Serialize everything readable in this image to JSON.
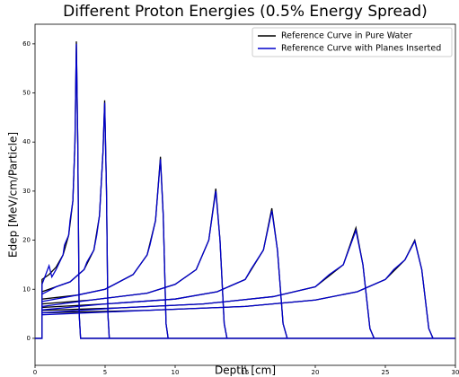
{
  "chart_data": {
    "type": "line",
    "title": "Different Proton Energies (0.5% Energy Spread)",
    "x_label": "Depth [cm]",
    "y_label": "Edep [MeV/cm/Particle]",
    "xlim": [
      0,
      30
    ],
    "xticks": [
      0,
      5,
      10,
      15,
      20,
      25,
      30
    ],
    "ylim": [
      -5.5,
      64
    ],
    "yticks": [
      0,
      10,
      20,
      30,
      40,
      50,
      60
    ],
    "legend": "upper right",
    "series": [
      {
        "name": "Reference Curve in Pure Water",
        "color": "#000000",
        "x": [
          0,
          0.5,
          0.5,
          1,
          1.5,
          2,
          2.4,
          2.7,
          2.85,
          2.95,
          3.05,
          3.15,
          3.25,
          30,
          null,
          0,
          0.5,
          0.5,
          1.5,
          2.5,
          3.5,
          4.2,
          4.6,
          4.85,
          4.97,
          5.1,
          5.2,
          5.3,
          30,
          null,
          0,
          0.5,
          0.5,
          3,
          5,
          7,
          8,
          8.6,
          8.95,
          9.15,
          9.35,
          9.5,
          30,
          null,
          0,
          0.5,
          0.5,
          4,
          8,
          10,
          11.5,
          12.4,
          12.9,
          13.2,
          13.5,
          13.7,
          30,
          null,
          0,
          0.5,
          0.5,
          5,
          10,
          13,
          15,
          16.3,
          16.9,
          17.3,
          17.7,
          18,
          30,
          null,
          0,
          0.5,
          0.5,
          6,
          12,
          17,
          20,
          22,
          22.9,
          23.4,
          23.9,
          24.2,
          30,
          null,
          0,
          0.5,
          0.5,
          8,
          15,
          20,
          23,
          25,
          26.4,
          27.1,
          27.6,
          28.1,
          28.4,
          30
        ],
        "values": [
          0,
          0,
          12,
          13,
          14.5,
          17,
          21,
          28,
          40,
          60.5,
          40,
          5,
          0,
          0,
          null,
          0,
          0,
          9.5,
          10.5,
          11.5,
          14,
          18,
          25,
          38,
          48.5,
          30,
          5,
          0,
          0,
          null,
          0,
          0,
          8,
          8.8,
          10,
          13,
          17,
          24,
          37,
          25,
          3,
          0,
          0,
          null,
          0,
          0,
          7,
          7.8,
          9.2,
          11,
          14,
          20,
          30.5,
          20,
          3,
          0,
          0,
          null,
          0,
          0,
          6.3,
          7,
          8,
          9.5,
          12,
          18,
          26.5,
          18,
          3,
          0,
          0,
          null,
          0,
          0,
          5.7,
          6.2,
          7,
          8.5,
          10.5,
          15,
          22.5,
          15,
          2,
          0,
          0,
          null,
          0,
          0,
          5.2,
          5.7,
          6.5,
          7.8,
          9.5,
          12,
          16,
          20,
          14,
          2,
          0,
          0
        ]
      },
      {
        "name": "Reference Curve with Planes Inserted",
        "color": "#0000cc",
        "x": [
          0,
          0.5,
          0.5,
          1,
          1.2,
          1.5,
          2,
          2.1,
          2.4,
          2.5,
          2.7,
          2.85,
          2.95,
          3.05,
          3.15,
          3.25,
          30,
          null,
          0,
          0.5,
          0.5,
          1.5,
          2.5,
          3.5,
          3.7,
          4.2,
          4.4,
          4.6,
          4.85,
          4.97,
          5.1,
          5.2,
          5.3,
          30,
          null,
          0,
          0.5,
          0.5,
          3,
          5,
          7,
          8,
          8.2,
          8.6,
          8.95,
          9.15,
          9.35,
          9.5,
          30,
          null,
          0,
          0.5,
          0.5,
          4,
          8,
          10,
          11.5,
          11.8,
          12.4,
          12.9,
          13.2,
          13.5,
          13.7,
          30,
          null,
          0,
          0.5,
          0.5,
          5,
          10,
          13,
          15,
          15.4,
          16.3,
          16.9,
          17.3,
          17.7,
          18,
          30,
          null,
          0,
          0.5,
          0.5,
          6,
          12,
          17,
          20,
          21,
          22,
          22.9,
          23.4,
          23.9,
          24.2,
          30,
          null,
          0,
          0.5,
          0.5,
          8,
          15,
          20,
          23,
          25,
          25.6,
          26.4,
          27.1,
          27.6,
          28.1,
          28.4,
          30
        ],
        "values": [
          0,
          0,
          11,
          14.8,
          12.5,
          14,
          17,
          19,
          21,
          24,
          28,
          40,
          60,
          40,
          5,
          0,
          0,
          null,
          0,
          0,
          9,
          10.5,
          11.5,
          14,
          15.5,
          18,
          21,
          25,
          38,
          48,
          30,
          5,
          0,
          0,
          null,
          0,
          0,
          7.5,
          8.8,
          10,
          13,
          17,
          19,
          24,
          36.5,
          25,
          3,
          0,
          0,
          null,
          0,
          0,
          6.5,
          7.8,
          9.2,
          11,
          14,
          16,
          20,
          30,
          20,
          3,
          0,
          0,
          null,
          0,
          0,
          5.8,
          7,
          8,
          9.5,
          12,
          14,
          18,
          26,
          18,
          3,
          0,
          0,
          null,
          0,
          0,
          5.2,
          6.2,
          7,
          8.5,
          10.5,
          13,
          15,
          22,
          15,
          2,
          0,
          0,
          null,
          0,
          0,
          4.8,
          5.7,
          6.5,
          7.8,
          9.5,
          12,
          14,
          16,
          19.8,
          14,
          2,
          0,
          0
        ]
      }
    ]
  }
}
